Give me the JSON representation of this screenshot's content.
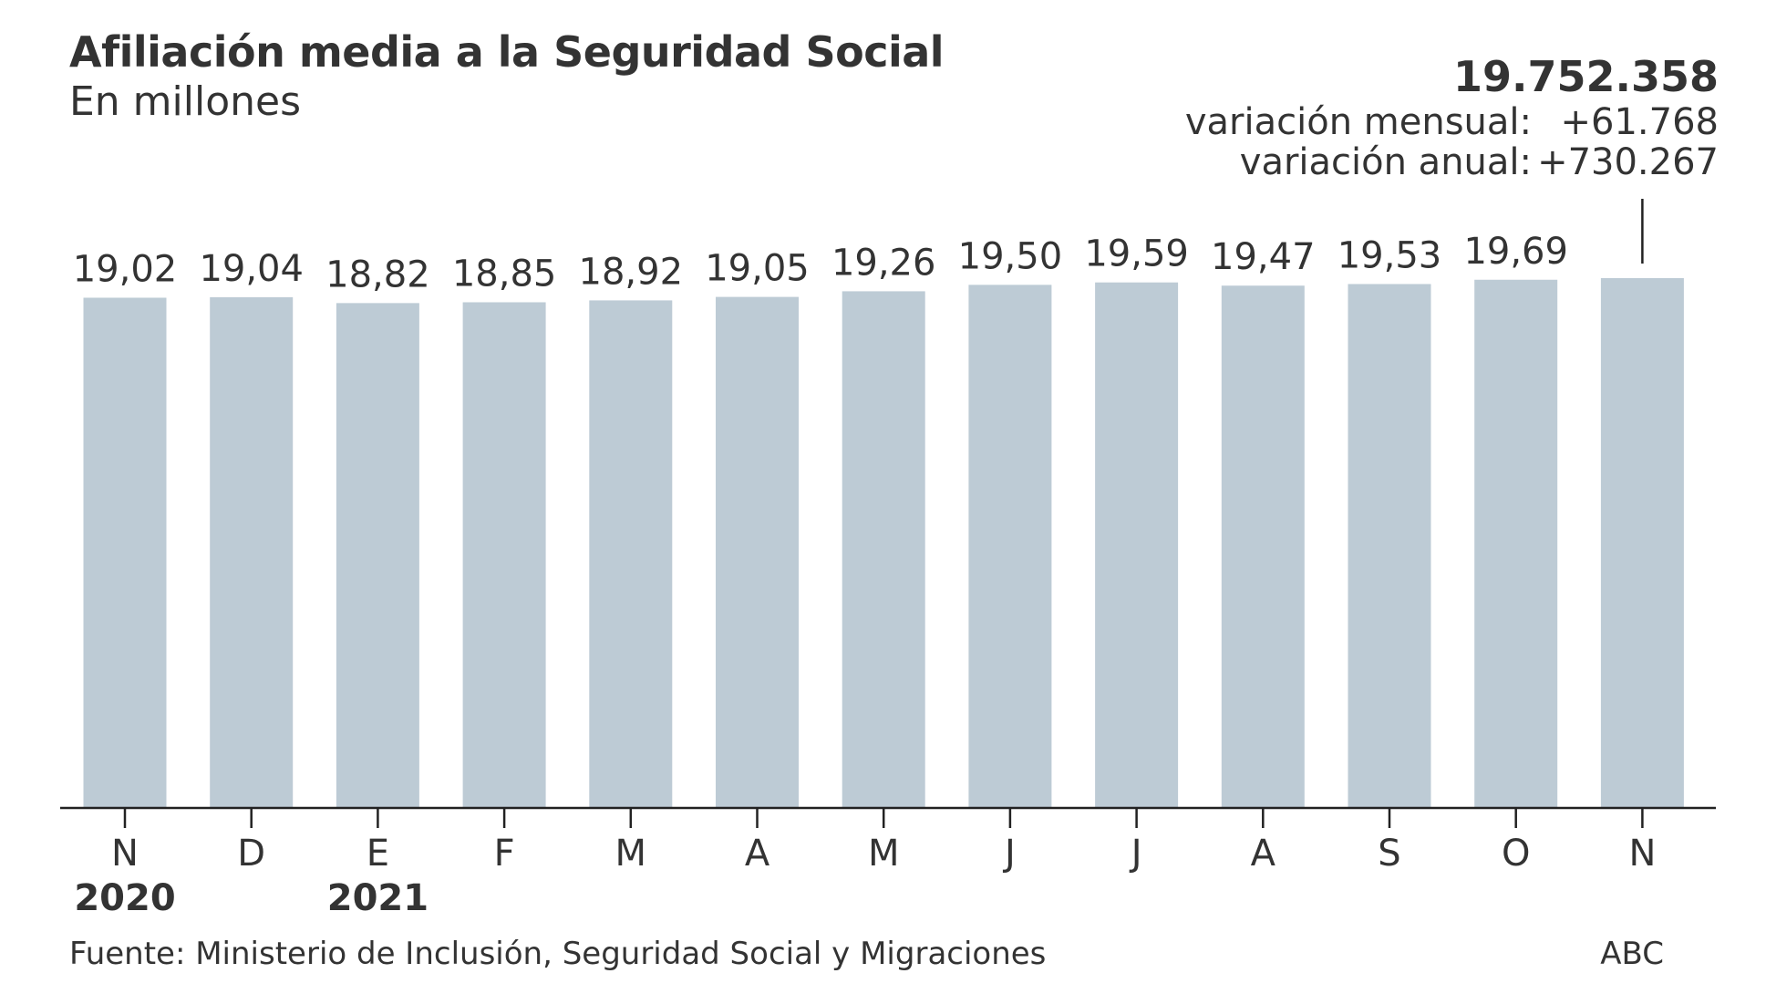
{
  "header": {
    "title": "Afiliación media a la Seguridad Social",
    "subtitle": "En millones"
  },
  "highlight": {
    "total": "19.752.358",
    "monthly_label": "variación mensual:",
    "monthly_value": "+61.768",
    "annual_label": "variación anual:",
    "annual_value": "+730.267"
  },
  "footer": {
    "source": "Fuente: Ministerio de Inclusión, Seguridad Social y Migraciones",
    "brand": "ABC"
  },
  "colors": {
    "bar": "#bdcbd5",
    "axis": "#222222",
    "text": "#333333"
  },
  "chart_data": {
    "type": "bar",
    "categories": [
      "N",
      "D",
      "E",
      "F",
      "M",
      "A",
      "M",
      "J",
      "J",
      "A",
      "S",
      "O",
      "N"
    ],
    "year_labels": [
      "2020",
      "",
      "2021",
      "",
      "",
      "",
      "",
      "",
      "",
      "",
      "",
      "",
      ""
    ],
    "values": [
      19.02,
      19.04,
      18.82,
      18.85,
      18.92,
      19.05,
      19.26,
      19.5,
      19.59,
      19.47,
      19.53,
      19.69,
      19.75
    ],
    "value_labels": [
      "19,02",
      "19,04",
      "18,82",
      "18,85",
      "18,92",
      "19,05",
      "19,26",
      "19,50",
      "19,59",
      "19,47",
      "19,53",
      "19,69",
      ""
    ],
    "ylim": [
      0,
      19.75
    ],
    "grid": false,
    "title": "Afiliación media a la Seguridad Social",
    "subtitle": "En millones"
  }
}
